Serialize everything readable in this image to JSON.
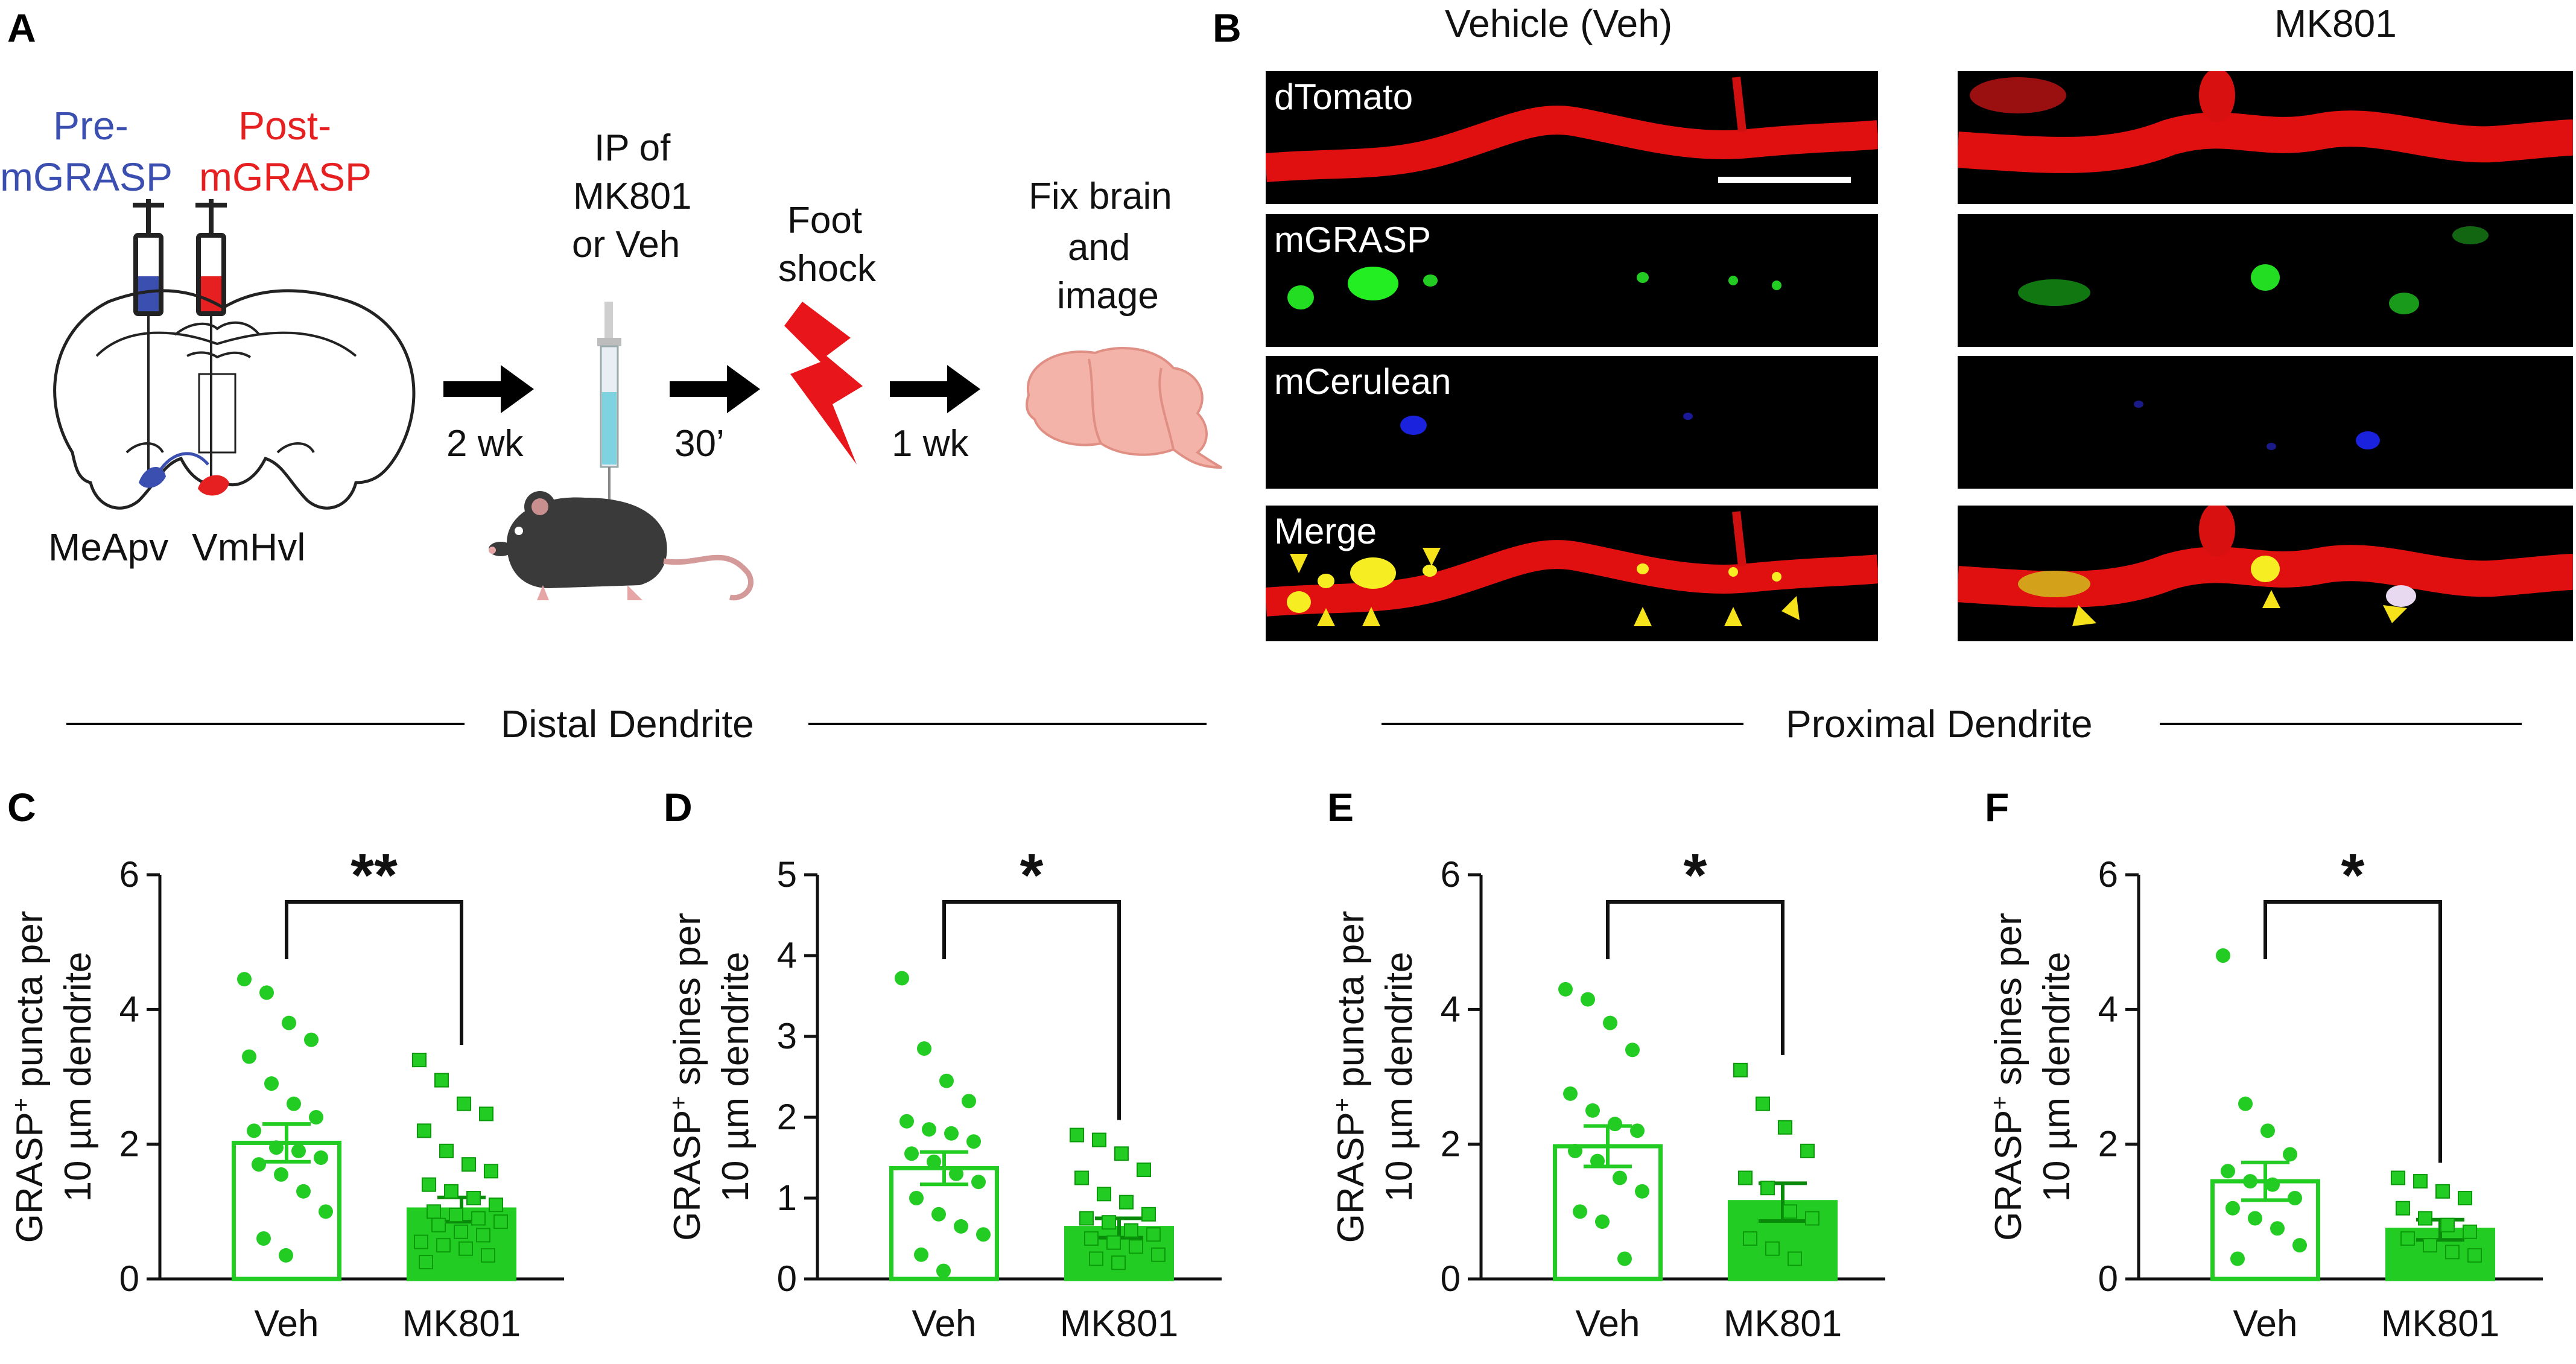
{
  "panel_labels": {
    "a": "A",
    "b": "B",
    "c": "C",
    "d": "D",
    "e": "E",
    "f": "F"
  },
  "panel_a": {
    "pre_label_1": "Pre-",
    "pre_label_2": "mGRASP",
    "post_label_1": "Post-",
    "post_label_2": "mGRASP",
    "region_left": "MeApv",
    "region_right": "VmHvl",
    "step1_time": "2 wk",
    "step2_1": "IP of",
    "step2_2": "MK801",
    "step2_3": "or Veh",
    "step2_time": "30’",
    "step3_1": "Foot",
    "step3_2": "shock",
    "step3_time": "1 wk",
    "step4_1": "Fix brain",
    "step4_2": "and",
    "step4_3": "image",
    "colors": {
      "pre": "#3a4fb0",
      "post": "#e62020",
      "shock": "#e8161b",
      "brain": "#f4b3a8"
    }
  },
  "panel_b": {
    "col_veh": "Vehicle (Veh)",
    "col_mk": "MK801",
    "rows": [
      "dTomato",
      "mGRASP",
      "mCerulean",
      "Merge"
    ]
  },
  "section_distal": "Distal Dendrite",
  "section_proximal": "Proximal Dendrite",
  "chart_data": [
    {
      "panel": "C",
      "type": "bar",
      "categories": [
        "Veh",
        "MK801"
      ],
      "ylabel_1": "GRASP",
      "ylabel_sup": "+",
      "ylabel_2": " puncta per",
      "ylabel_3": "10 µm dendrite",
      "ylim": [
        0,
        6
      ],
      "yticks": [
        "0",
        "2",
        "4",
        "6"
      ],
      "means": [
        2.02,
        1.03
      ],
      "sem": [
        0.28,
        0.18
      ],
      "significance": "**",
      "points": [
        [
          4.45,
          4.25,
          3.8,
          3.55,
          3.3,
          2.9,
          2.6,
          2.4,
          2.2,
          1.95,
          1.9,
          1.8,
          1.7,
          1.55,
          1.3,
          1.0,
          0.6,
          0.35
        ],
        [
          3.25,
          2.95,
          2.6,
          2.45,
          2.2,
          1.9,
          1.7,
          1.6,
          1.4,
          1.3,
          1.2,
          1.1,
          1.0,
          0.95,
          0.9,
          0.85,
          0.8,
          0.7,
          0.65,
          0.55,
          0.5,
          0.45,
          0.35,
          0.25
        ]
      ]
    },
    {
      "panel": "D",
      "type": "bar",
      "categories": [
        "Veh",
        "MK801"
      ],
      "ylabel_1": "GRASP",
      "ylabel_sup": "+",
      "ylabel_2": " spines per",
      "ylabel_3": "10 µm dendrite",
      "ylim": [
        0,
        5
      ],
      "yticks": [
        "0",
        "1",
        "2",
        "3",
        "4",
        "5"
      ],
      "means": [
        1.37,
        0.63
      ],
      "sem": [
        0.2,
        0.12
      ],
      "significance": "*",
      "points": [
        [
          3.72,
          2.85,
          2.45,
          2.2,
          1.95,
          1.85,
          1.8,
          1.7,
          1.55,
          1.45,
          1.3,
          1.2,
          1.0,
          0.8,
          0.65,
          0.55,
          0.3,
          0.1
        ],
        [
          1.78,
          1.72,
          1.55,
          1.35,
          1.25,
          1.05,
          0.95,
          0.8,
          0.75,
          0.7,
          0.6,
          0.55,
          0.5,
          0.45,
          0.4,
          0.3,
          0.25,
          0.2
        ]
      ]
    },
    {
      "panel": "E",
      "type": "bar",
      "categories": [
        "Veh",
        "MK801"
      ],
      "ylabel_1": "GRASP",
      "ylabel_sup": "+",
      "ylabel_2": " puncta per",
      "ylabel_3": "10 µm dendrite",
      "ylim": [
        0,
        6
      ],
      "yticks": [
        "0",
        "2",
        "4",
        "6"
      ],
      "means": [
        1.97,
        1.14
      ],
      "sem": [
        0.3,
        0.28
      ],
      "significance": "*",
      "points": [
        [
          4.3,
          4.15,
          3.8,
          3.4,
          2.75,
          2.5,
          2.3,
          2.2,
          1.9,
          1.75,
          1.5,
          1.3,
          1.0,
          0.85,
          0.3
        ],
        [
          3.1,
          2.6,
          2.25,
          1.9,
          1.5,
          1.35,
          1.0,
          0.9,
          0.6,
          0.45,
          0.3
        ]
      ]
    },
    {
      "panel": "F",
      "type": "bar",
      "categories": [
        "Veh",
        "MK801"
      ],
      "ylabel_1": "GRASP",
      "ylabel_sup": "+",
      "ylabel_2": " spines per",
      "ylabel_3": "10 µm dendrite",
      "ylim": [
        0,
        6
      ],
      "yticks": [
        "0",
        "2",
        "4",
        "6"
      ],
      "means": [
        1.45,
        0.73
      ],
      "sem": [
        0.28,
        0.15
      ],
      "significance": "*",
      "points": [
        [
          4.8,
          2.6,
          2.2,
          1.85,
          1.6,
          1.45,
          1.4,
          1.2,
          1.05,
          0.9,
          0.75,
          0.5,
          0.3
        ],
        [
          1.5,
          1.45,
          1.3,
          1.2,
          1.05,
          0.9,
          0.8,
          0.7,
          0.6,
          0.5,
          0.4,
          0.35
        ]
      ]
    }
  ]
}
